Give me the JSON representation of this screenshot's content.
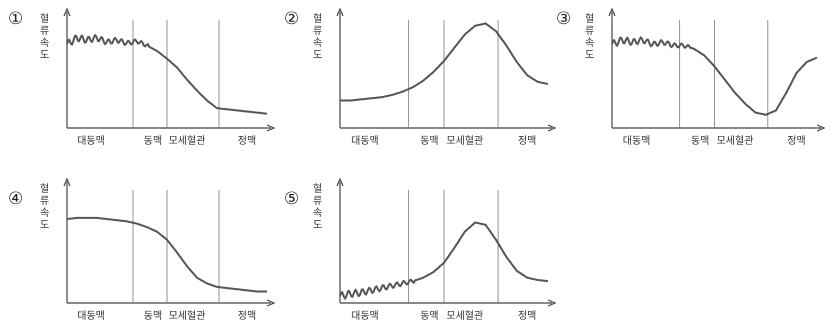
{
  "chart_data": [
    {
      "type": "line",
      "option": "①",
      "ylabel": "혈류 속도",
      "categories": [
        "대동맥",
        "동맥",
        "모세혈관",
        "정맥"
      ],
      "x": [
        0,
        5,
        10,
        15,
        20,
        25,
        30,
        35,
        40,
        45,
        50,
        55,
        60,
        65,
        70,
        75,
        80,
        85,
        90,
        95,
        100
      ],
      "series": [
        {
          "values": [
            76,
            82,
            80,
            82,
            78,
            80,
            77,
            79,
            75,
            70,
            63,
            55,
            44,
            34,
            25,
            18,
            17,
            16,
            15,
            14,
            13
          ]
        }
      ],
      "pulsatile_until_x": 41
    },
    {
      "type": "line",
      "option": "②",
      "ylabel": "혈류 속도",
      "categories": [
        "대동맥",
        "동맥",
        "모세혈관",
        "정맥"
      ],
      "x": [
        0,
        5,
        10,
        15,
        20,
        25,
        30,
        35,
        40,
        45,
        50,
        55,
        60,
        65,
        70,
        75,
        80,
        85,
        90,
        95,
        100
      ],
      "series": [
        {
          "values": [
            25,
            25,
            26,
            27,
            28,
            30,
            33,
            37,
            43,
            51,
            61,
            73,
            85,
            93,
            95,
            88,
            75,
            60,
            48,
            42,
            40
          ]
        }
      ],
      "pulsatile_until_x": 0
    },
    {
      "type": "line",
      "option": "③",
      "ylabel": "혈류 속도",
      "categories": [
        "대동맥",
        "동맥",
        "모세혈관",
        "정맥"
      ],
      "x": [
        0,
        5,
        10,
        15,
        20,
        25,
        30,
        35,
        40,
        45,
        50,
        55,
        60,
        65,
        70,
        75,
        80,
        85,
        90,
        95,
        100
      ],
      "series": [
        {
          "values": [
            76,
            80,
            78,
            80,
            76,
            78,
            75,
            75,
            72,
            66,
            56,
            44,
            32,
            22,
            14,
            12,
            16,
            32,
            50,
            60,
            64
          ]
        }
      ],
      "pulsatile_until_x": 38
    },
    {
      "type": "line",
      "option": "④",
      "ylabel": "혈류 속도",
      "categories": [
        "대동맥",
        "동맥",
        "모세혈관",
        "정맥"
      ],
      "x": [
        0,
        5,
        10,
        15,
        20,
        25,
        30,
        35,
        40,
        45,
        50,
        55,
        60,
        65,
        70,
        75,
        80,
        85,
        90,
        95,
        100
      ],
      "series": [
        {
          "values": [
            73,
            74,
            74,
            74,
            73,
            72,
            71,
            69,
            66,
            62,
            55,
            44,
            32,
            22,
            17,
            14,
            13,
            12,
            11,
            10,
            10
          ]
        }
      ],
      "pulsatile_until_x": 0
    },
    {
      "type": "line",
      "option": "⑤",
      "ylabel": "혈류 속도",
      "categories": [
        "대동맥",
        "동맥",
        "모세혈관",
        "정맥"
      ],
      "x": [
        0,
        5,
        10,
        15,
        20,
        25,
        30,
        35,
        40,
        45,
        50,
        55,
        60,
        65,
        70,
        75,
        80,
        85,
        90,
        95,
        100
      ],
      "series": [
        {
          "values": [
            6,
            8,
            9,
            11,
            13,
            15,
            17,
            19,
            22,
            27,
            35,
            48,
            62,
            70,
            68,
            55,
            40,
            28,
            22,
            20,
            19
          ]
        }
      ],
      "pulsatile_until_x": 36
    }
  ]
}
